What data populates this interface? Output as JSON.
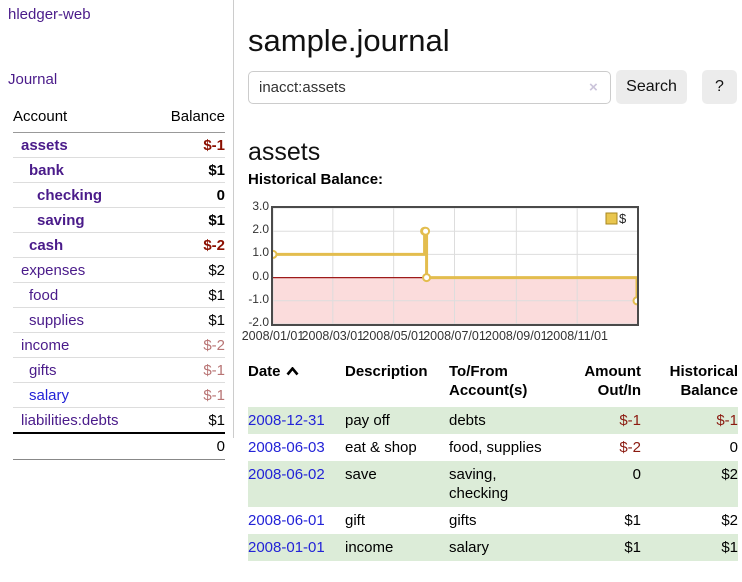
{
  "app": {
    "title": "hledger-web"
  },
  "sidebar": {
    "journal_link": "Journal",
    "accounts_table": {
      "account_header": "Account",
      "balance_header": "Balance",
      "rows": [
        {
          "name": "assets",
          "depth": 0,
          "bold": true,
          "balance": "$-1",
          "balance_tone": "neg-strong",
          "link_tone": "purple"
        },
        {
          "name": "bank",
          "depth": 1,
          "bold": true,
          "balance": "$1",
          "balance_tone": "normal",
          "link_tone": "purple"
        },
        {
          "name": "checking",
          "depth": 2,
          "bold": true,
          "balance": "0",
          "balance_tone": "normal",
          "link_tone": "purple"
        },
        {
          "name": "saving",
          "depth": 2,
          "bold": true,
          "balance": "$1",
          "balance_tone": "normal",
          "link_tone": "purple"
        },
        {
          "name": "cash",
          "depth": 1,
          "bold": true,
          "balance": "$-2",
          "balance_tone": "neg-strong",
          "link_tone": "purple"
        },
        {
          "name": "expenses",
          "depth": 0,
          "bold": false,
          "balance": "$2",
          "balance_tone": "normal",
          "link_tone": "purple"
        },
        {
          "name": "food",
          "depth": 1,
          "bold": false,
          "balance": "$1",
          "balance_tone": "normal",
          "link_tone": "purple"
        },
        {
          "name": "supplies",
          "depth": 1,
          "bold": false,
          "balance": "$1",
          "balance_tone": "normal",
          "link_tone": "purple"
        },
        {
          "name": "income",
          "depth": 0,
          "bold": false,
          "balance": "$-2",
          "balance_tone": "neg-light",
          "link_tone": "purple"
        },
        {
          "name": "gifts",
          "depth": 1,
          "bold": false,
          "balance": "$-1",
          "balance_tone": "neg-light",
          "link_tone": "purple"
        },
        {
          "name": "salary",
          "depth": 1,
          "bold": false,
          "balance": "$-1",
          "balance_tone": "neg-light",
          "link_tone": "blue"
        },
        {
          "name": "liabilities:debts",
          "depth": 0,
          "bold": false,
          "balance": "$1",
          "balance_tone": "normal",
          "link_tone": "purple"
        }
      ],
      "total": "0"
    }
  },
  "main": {
    "title": "sample.journal",
    "search": {
      "value": "inacct:assets",
      "clear_icon": "×",
      "button_label": "Search",
      "help_label": "?"
    },
    "account_heading": "assets",
    "chart_heading": "Historical Balance:"
  },
  "chart_data": {
    "type": "line",
    "step": true,
    "title": "Historical Balance:",
    "series": [
      {
        "name": "$",
        "points": [
          {
            "x": "2008-01-01",
            "y": 1
          },
          {
            "x": "2008-06-01",
            "y": 2
          },
          {
            "x": "2008-06-02",
            "y": 2
          },
          {
            "x": "2008-06-03",
            "y": 0
          },
          {
            "x": "2008-12-31",
            "y": -1
          }
        ]
      }
    ],
    "xlim": [
      "2008-01-01",
      "2008-12-31"
    ],
    "ylim": [
      -2,
      3
    ],
    "x_ticks": [
      {
        "x": "2008-01-01",
        "label": "2008/01/01"
      },
      {
        "x": "2008-03-01",
        "label": "2008/03/01"
      },
      {
        "x": "2008-05-01",
        "label": "2008/05/01"
      },
      {
        "x": "2008-07-01",
        "label": "2008/07/01"
      },
      {
        "x": "2008-09-01",
        "label": "2008/09/01"
      },
      {
        "x": "2008-11-01",
        "label": "2008/11/01"
      }
    ],
    "y_ticks": [
      {
        "v": 3,
        "label": "3.0"
      },
      {
        "v": 2,
        "label": "2.0"
      },
      {
        "v": 1,
        "label": "1.0"
      },
      {
        "v": 0,
        "label": "0.0"
      },
      {
        "v": -1,
        "label": "-1.0"
      },
      {
        "v": -2,
        "label": "-2.0"
      }
    ],
    "legend": {
      "position": "top-right",
      "entries": [
        {
          "label": "$",
          "color": "#e9c64f"
        }
      ]
    },
    "grid": true,
    "line_color": "#e3bd4e",
    "marker_fill": "#ffffff",
    "negative_region": {
      "from": 0,
      "to": -2,
      "fill": "#fbdcdc"
    },
    "zero_line_color": "#9e1a1a"
  },
  "register_table": {
    "headers": [
      {
        "label": "Date",
        "align": "left",
        "sort": "asc"
      },
      {
        "label": "Description",
        "align": "left"
      },
      {
        "label": "To/From\nAccount(s)",
        "align": "left"
      },
      {
        "label": "Amount\nOut/In",
        "align": "right"
      },
      {
        "label": "Historical\nBalance",
        "align": "right"
      }
    ],
    "rows": [
      {
        "date": "2008-12-31",
        "description": "pay off",
        "accounts": "debts",
        "amount": "$-1",
        "balance": "$-1"
      },
      {
        "date": "2008-06-03",
        "description": "eat & shop",
        "accounts": "food, supplies",
        "amount": "$-2",
        "balance": "0"
      },
      {
        "date": "2008-06-02",
        "description": "save",
        "accounts": "saving,\nchecking",
        "amount": "0",
        "balance": "$2"
      },
      {
        "date": "2008-06-01",
        "description": "gift",
        "accounts": "gifts",
        "amount": "$1",
        "balance": "$2"
      },
      {
        "date": "2008-01-01",
        "description": "income",
        "accounts": "salary",
        "amount": "$1",
        "balance": "$1"
      }
    ]
  },
  "colors": {
    "link_purple": "#4a1b8a",
    "link_blue": "#2323d7",
    "negative_strong": "#8b0f00",
    "negative_light": "#b87474",
    "table_negative": "#8b1a10",
    "table_stripe_green": "#dcecd8",
    "chart_line_gold": "#e3bd4e",
    "chart_negative_fill": "#fbdcdc",
    "chart_zero_line": "#9e1a1a",
    "chart_border": "#4a4a4a",
    "button_bg": "#ececec"
  }
}
